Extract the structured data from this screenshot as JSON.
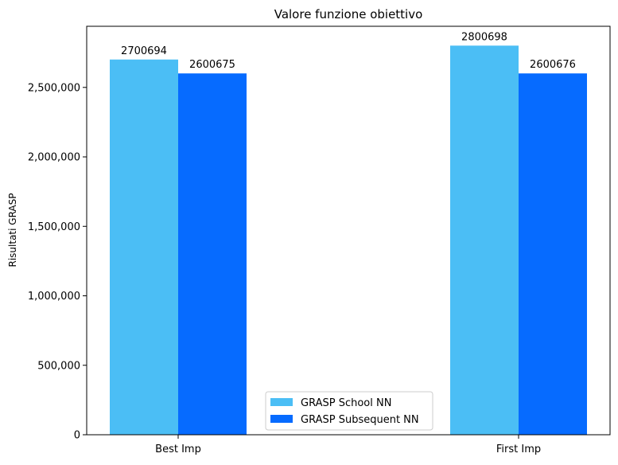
{
  "chart_data": {
    "type": "bar",
    "title": "Valore funzione obiettivo",
    "xlabel": "",
    "ylabel": "Risultati GRASP",
    "categories": [
      "Best Imp",
      "First Imp"
    ],
    "series": [
      {
        "name": "GRASP School NN",
        "values": [
          2700694,
          2800698
        ],
        "color": "#4bbef5"
      },
      {
        "name": "GRASP Subsequent NN",
        "values": [
          2600675,
          2600676
        ],
        "color": "#066bff"
      }
    ],
    "data_labels": [
      [
        "2700694",
        "2800698"
      ],
      [
        "2600675",
        "2600676"
      ]
    ],
    "ylim": [
      0,
      2940000
    ],
    "yticks": [
      0,
      500000,
      1000000,
      1500000,
      2000000,
      2500000
    ],
    "ytick_labels": [
      "0",
      "500,000",
      "1,000,000",
      "1,500,000",
      "2,000,000",
      "2,500,000"
    ],
    "grid": false,
    "legend_position": "bottom-center"
  }
}
